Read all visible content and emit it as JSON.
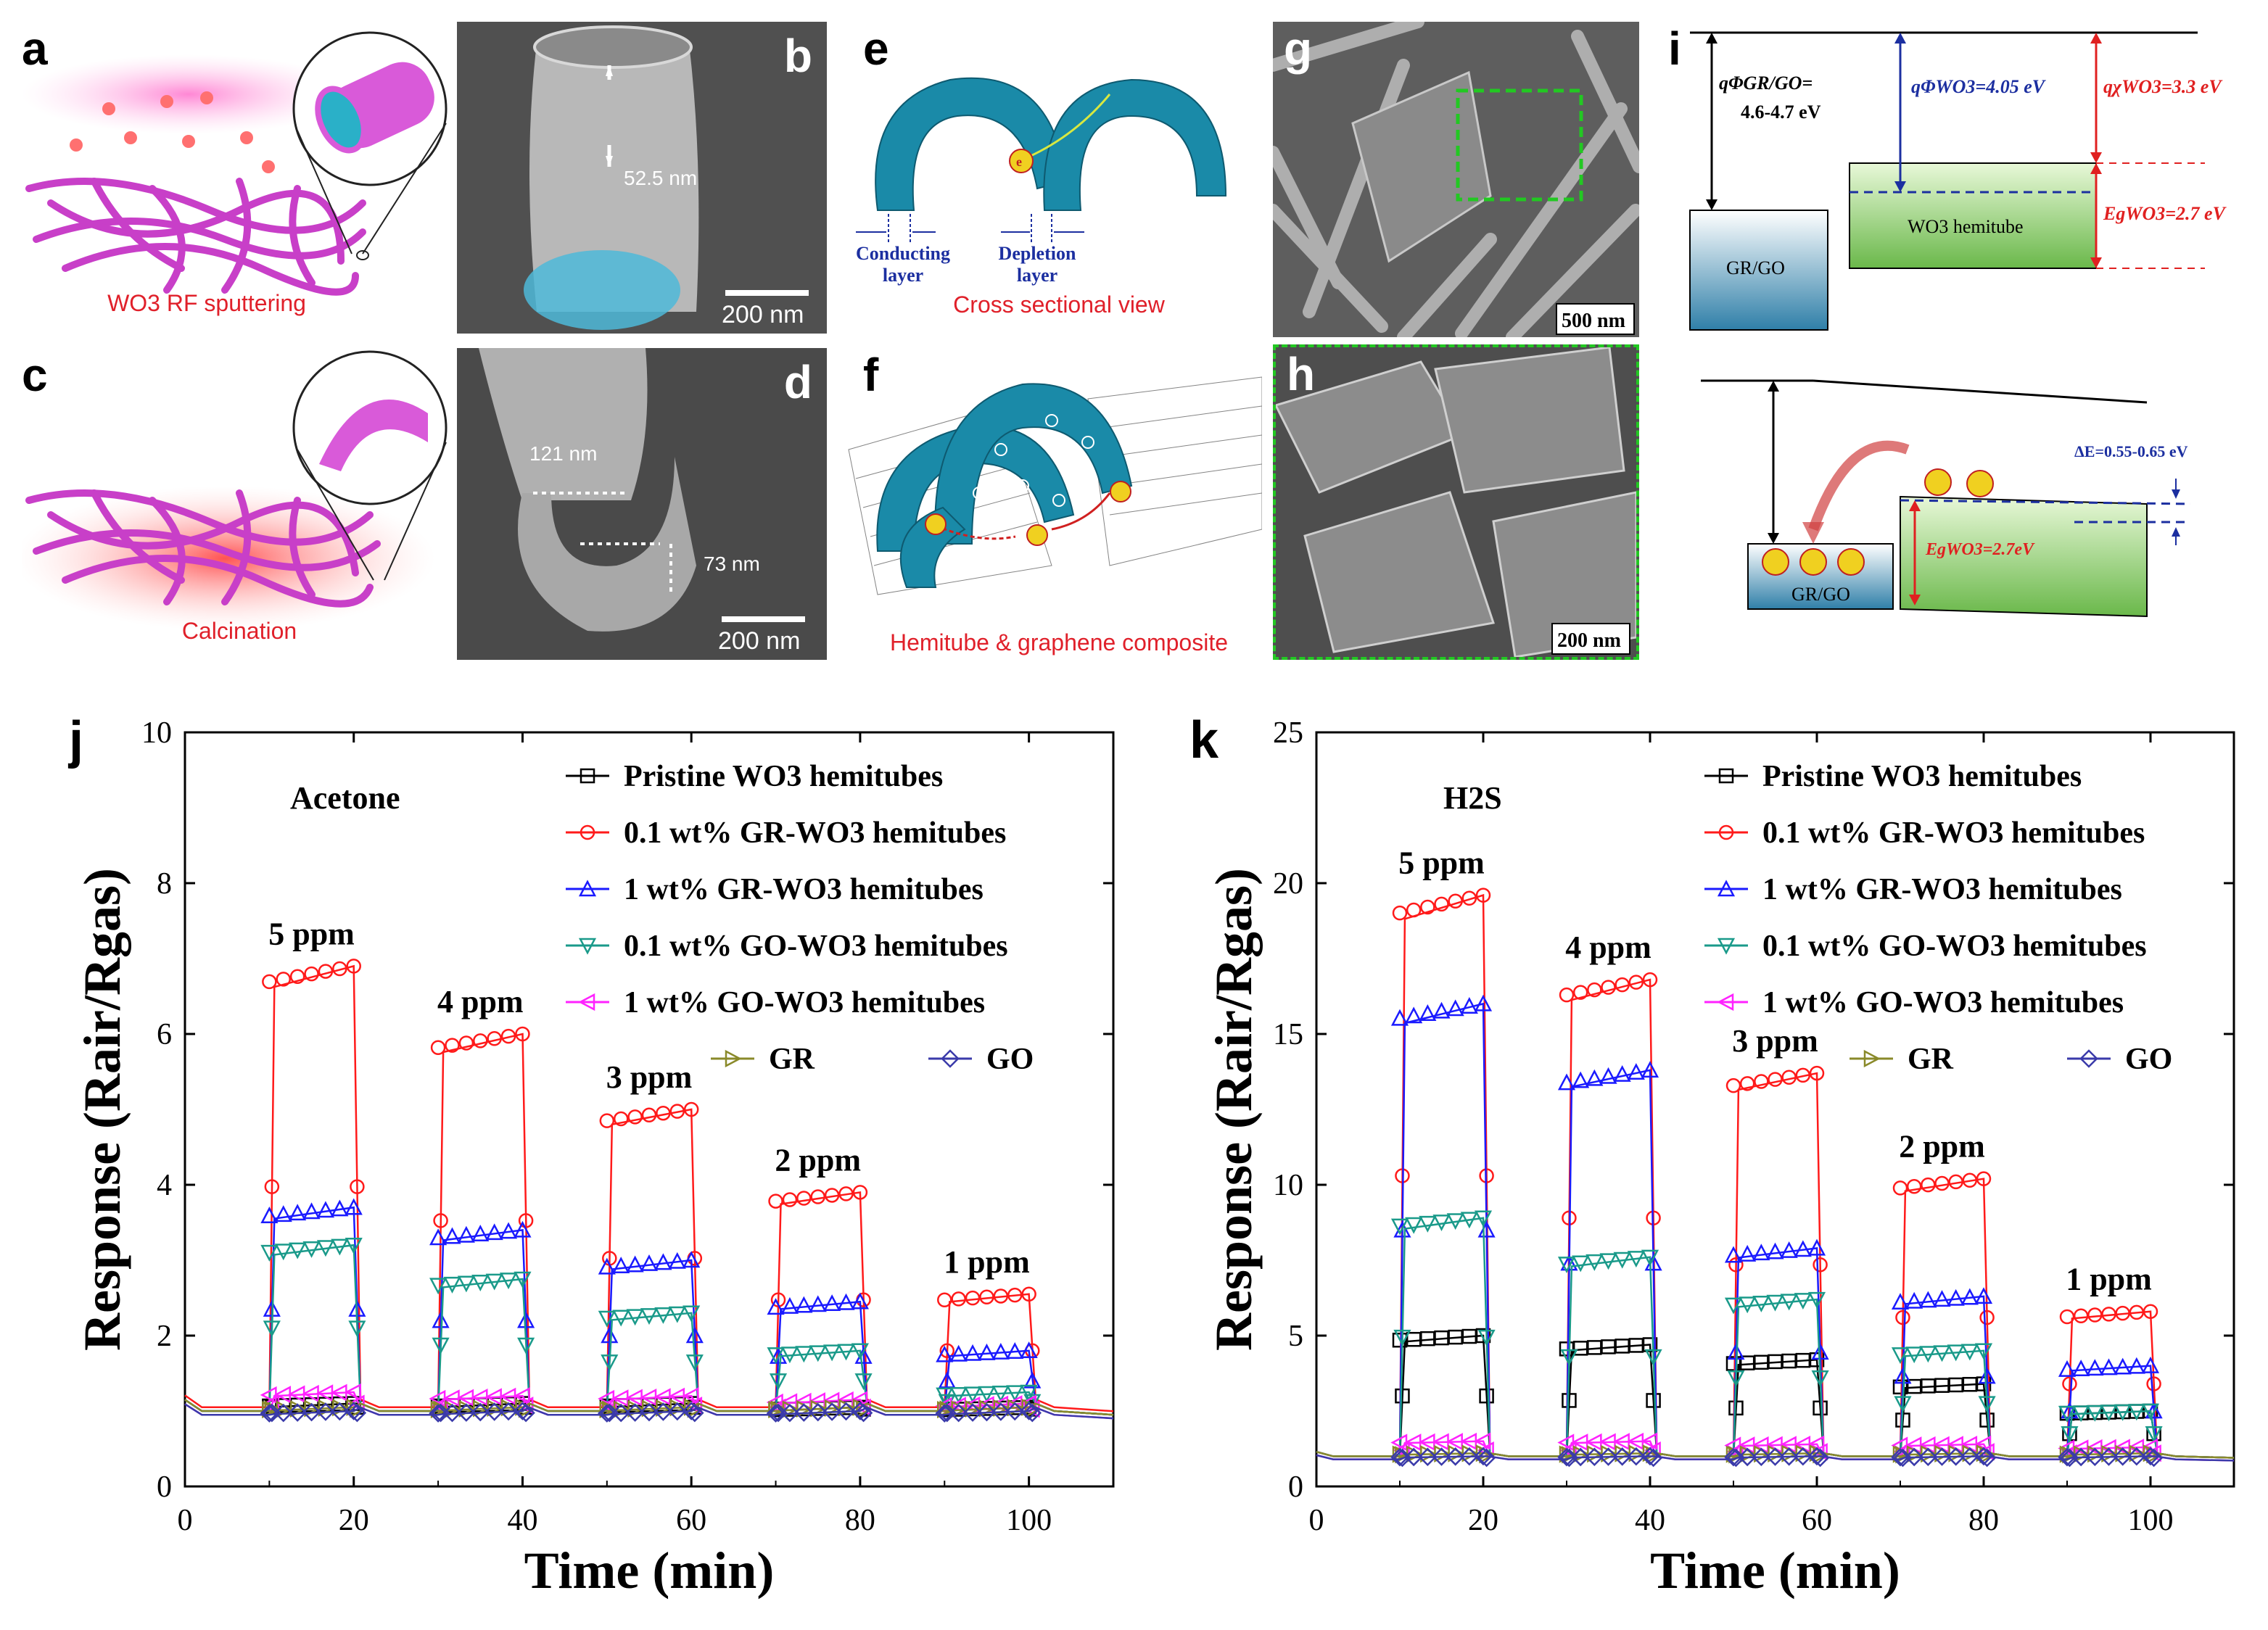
{
  "panels": {
    "a": {
      "label": "a",
      "caption": "WO3 RF sputtering"
    },
    "b": {
      "label": "b",
      "annotation": "52.5 nm",
      "scale": "200 nm"
    },
    "c": {
      "label": "c",
      "caption": "Calcination"
    },
    "d": {
      "label": "d",
      "annotation_1": "121 nm",
      "annotation_2": "73 nm",
      "scale": "200 nm"
    },
    "e": {
      "label": "e",
      "conducting": "Conducting layer",
      "depletion": "Depletion layer",
      "caption": "Cross sectional view"
    },
    "f": {
      "label": "f",
      "caption": "Hemitube & graphene composite"
    },
    "g": {
      "label": "g",
      "scale": "500 nm"
    },
    "h": {
      "label": "h",
      "scale": "200 nm"
    },
    "i": {
      "label": "i",
      "phi_grgo": "qΦGR/GO=",
      "phi_grgo_val": "4.6-4.7 eV",
      "phi_wo3": "qΦWO3=4.05 eV",
      "chi_wo3": "qχWO3=3.3 eV",
      "eg_wo3": "EgWO3=2.7 eV",
      "wo3_box": "WO3 hemitube",
      "grgo_box": "GR/GO",
      "delta_e": "ΔE=0.55-0.65 eV",
      "eg_wo3_2": "EgWO3=2.7eV",
      "grgo_box_2": "GR/GO",
      "electron": "e⁻"
    },
    "j": {
      "label": "j"
    },
    "k": {
      "label": "k"
    }
  },
  "colors": {
    "pristine": "#000000",
    "gr01": "#ff1a1a",
    "gr1": "#1a1aff",
    "go01": "#1a9a8a",
    "go1": "#ff22ff",
    "gr": "#8a8a2a",
    "go": "#3a3aaa"
  },
  "chart_data": [
    {
      "type": "line",
      "panel": "j",
      "gas": "Acetone",
      "xlabel": "Time (min)",
      "ylabel": "Response (Rair/Rgas)",
      "xlim": [
        0,
        110
      ],
      "ylim": [
        0,
        10
      ],
      "xticks": [
        0,
        20,
        40,
        60,
        80,
        100
      ],
      "yticks": [
        0,
        2,
        4,
        6,
        8,
        10
      ],
      "pulses": [
        [
          10,
          20
        ],
        [
          30,
          40
        ],
        [
          50,
          60
        ],
        [
          70,
          80
        ],
        [
          90,
          100
        ]
      ],
      "concentrations": [
        "5 ppm",
        "4 ppm",
        "3 ppm",
        "2 ppm",
        "1 ppm"
      ],
      "series": [
        {
          "name": "Pristine WO3 hemitubes",
          "key": "pristine",
          "marker": "square",
          "baseline": 1.0,
          "plateaus": [
            1.1,
            1.1,
            1.1,
            1.05,
            1.05
          ]
        },
        {
          "name": "0.1 wt% GR-WO3 hemitubes",
          "key": "gr01",
          "marker": "circle",
          "baseline": 1.05,
          "plateaus": [
            6.9,
            6.0,
            5.0,
            3.9,
            2.55
          ]
        },
        {
          "name": "1 wt% GR-WO3 hemitubes",
          "key": "gr1",
          "marker": "triangle-up",
          "baseline": 1.0,
          "plateaus": [
            3.7,
            3.4,
            3.0,
            2.45,
            1.8
          ]
        },
        {
          "name": "0.1 wt% GO-WO3 hemitubes",
          "key": "go01",
          "marker": "triangle-down",
          "baseline": 1.0,
          "plateaus": [
            3.2,
            2.75,
            2.3,
            1.8,
            1.25
          ]
        },
        {
          "name": "1 wt% GO-WO3 hemitubes",
          "key": "go1",
          "marker": "triangle-left",
          "baseline": 0.95,
          "plateaus": [
            1.25,
            1.2,
            1.2,
            1.15,
            1.1
          ]
        },
        {
          "name": "GR",
          "key": "gr",
          "marker": "triangle-right",
          "baseline": 1.0,
          "plateaus": [
            1.05,
            1.05,
            1.05,
            1.05,
            1.05
          ]
        },
        {
          "name": "GO",
          "key": "go",
          "marker": "diamond",
          "baseline": 0.95,
          "plateaus": [
            1.0,
            1.0,
            1.0,
            1.0,
            1.0
          ]
        }
      ]
    },
    {
      "type": "line",
      "panel": "k",
      "gas": "H2S",
      "xlabel": "Time (min)",
      "ylabel": "Response (Rair/Rgas)",
      "xlim": [
        0,
        110
      ],
      "ylim": [
        0,
        25
      ],
      "xticks": [
        0,
        20,
        40,
        60,
        80,
        100
      ],
      "yticks": [
        0,
        5,
        10,
        15,
        20,
        25
      ],
      "pulses": [
        [
          10,
          20
        ],
        [
          30,
          40
        ],
        [
          50,
          60
        ],
        [
          70,
          80
        ],
        [
          90,
          100
        ]
      ],
      "concentrations": [
        "5 ppm",
        "4 ppm",
        "3 ppm",
        "2 ppm",
        "1 ppm"
      ],
      "series": [
        {
          "name": "Pristine WO3 hemitubes",
          "key": "pristine",
          "marker": "square",
          "baseline": 1.0,
          "plateaus": [
            5.0,
            4.7,
            4.2,
            3.4,
            2.5
          ]
        },
        {
          "name": "0.1 wt% GR-WO3 hemitubes",
          "key": "gr01",
          "marker": "circle",
          "baseline": 1.0,
          "plateaus": [
            19.6,
            16.8,
            13.7,
            10.2,
            5.8
          ]
        },
        {
          "name": "1 wt% GR-WO3 hemitubes",
          "key": "gr1",
          "marker": "triangle-up",
          "baseline": 1.0,
          "plateaus": [
            16.0,
            13.8,
            7.9,
            6.3,
            4.0
          ]
        },
        {
          "name": "0.1 wt% GO-WO3 hemitubes",
          "key": "go01",
          "marker": "triangle-down",
          "baseline": 1.0,
          "plateaus": [
            8.9,
            7.6,
            6.2,
            4.5,
            2.5
          ]
        },
        {
          "name": "1 wt% GO-WO3 hemitubes",
          "key": "go1",
          "marker": "triangle-left",
          "baseline": 0.9,
          "plateaus": [
            1.5,
            1.5,
            1.4,
            1.4,
            1.3
          ]
        },
        {
          "name": "GR",
          "key": "gr",
          "marker": "triangle-right",
          "baseline": 1.0,
          "plateaus": [
            1.1,
            1.1,
            1.1,
            1.1,
            1.1
          ]
        },
        {
          "name": "GO",
          "key": "go",
          "marker": "diamond",
          "baseline": 0.9,
          "plateaus": [
            1.0,
            1.0,
            1.0,
            1.0,
            1.0
          ]
        }
      ]
    }
  ]
}
